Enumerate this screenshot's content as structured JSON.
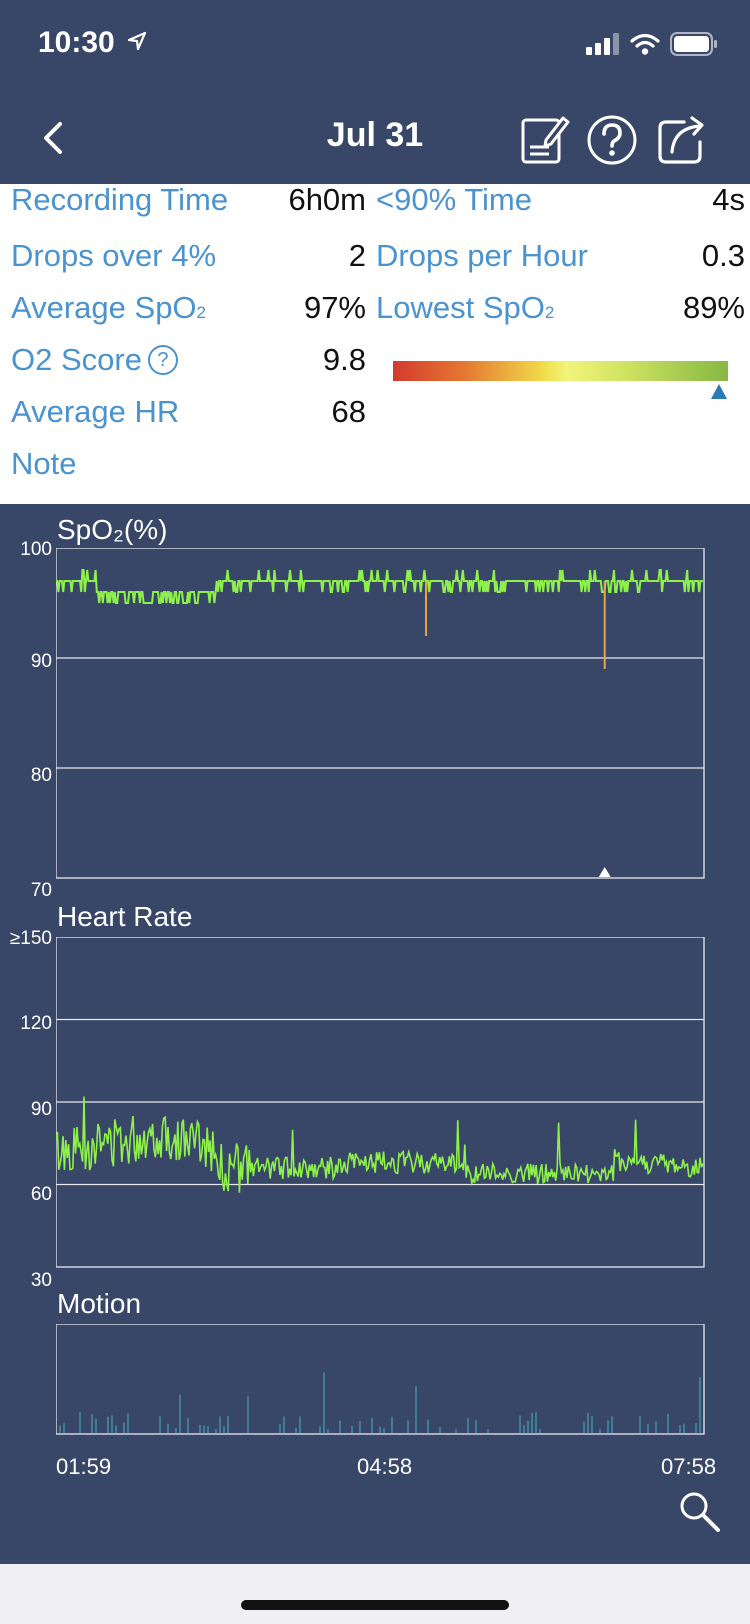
{
  "status_bar": {
    "time": "10:30"
  },
  "nav": {
    "title": "Jul 31"
  },
  "summary": {
    "recording_time": {
      "label": "Recording Time",
      "value": "6h0m"
    },
    "below90_time": {
      "label": "<90% Time",
      "value": "4s"
    },
    "drops_over_4": {
      "label": "Drops over 4%",
      "value": "2"
    },
    "drops_per_hour": {
      "label": "Drops per Hour",
      "value": "0.3"
    },
    "average_spo2": {
      "label": "Average SpO",
      "sub": "2",
      "value": "97%"
    },
    "lowest_spo2": {
      "label": "Lowest SpO",
      "sub": "2",
      "value": "89%"
    },
    "o2_score": {
      "label": "O2 Score",
      "help": "?",
      "value": "9.8"
    },
    "average_hr": {
      "label": "Average HR",
      "value": "68"
    },
    "note": {
      "label": "Note"
    }
  },
  "chart_data": [
    {
      "type": "line",
      "title": "SpO₂(%)",
      "ylim": [
        70,
        100
      ],
      "yticks": [
        "100",
        "90",
        "80",
        "70"
      ],
      "x_labels": [
        "01:59",
        "04:58",
        "07:58"
      ],
      "color": "#8ef04a",
      "drop_color": "#e8a545",
      "baseline": 97,
      "drops": [
        {
          "time": "05:24",
          "value": 92
        },
        {
          "time": "07:03",
          "value": 89
        }
      ],
      "marker_time": "07:03"
    },
    {
      "type": "line",
      "title": "Heart Rate",
      "ylim": [
        30,
        150
      ],
      "yticks": [
        "≥150",
        "120",
        "90",
        "60",
        "30"
      ],
      "color": "#8ef04a",
      "range": [
        57,
        92
      ]
    },
    {
      "type": "bar",
      "title": "Motion",
      "color": "#4ec6d0"
    }
  ]
}
